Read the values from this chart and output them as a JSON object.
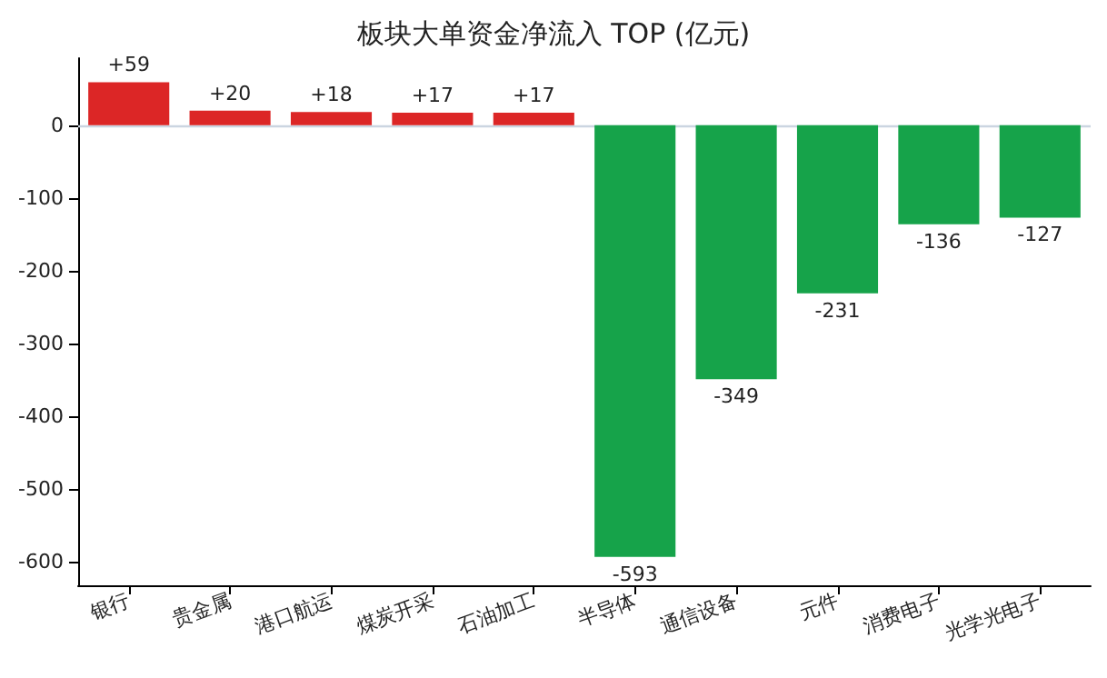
{
  "chart_data": {
    "type": "bar",
    "title": "板块大单资金净流入 TOP (亿元)",
    "categories": [
      "银行",
      "贵金属",
      "港口航运",
      "煤炭开采",
      "石油加工",
      "半导体",
      "通信设备",
      "元件",
      "消费电子",
      "光学光电子"
    ],
    "values": [
      59,
      20,
      18,
      17,
      17,
      -593,
      -349,
      -231,
      -136,
      -127
    ],
    "value_labels": [
      "+59",
      "+20",
      "+18",
      "+17",
      "+17",
      "-593",
      "-349",
      "-231",
      "-136",
      "-127"
    ],
    "colors": [
      "#dc2626",
      "#dc2626",
      "#dc2626",
      "#dc2626",
      "#dc2626",
      "#16a34a",
      "#16a34a",
      "#16a34a",
      "#16a34a",
      "#16a34a"
    ],
    "ylim": [
      -632,
      92
    ],
    "yticks": [
      0,
      -100,
      -200,
      -300,
      -400,
      -500,
      -600
    ],
    "ref_lines": [
      {
        "axis": "y",
        "value": 0,
        "color": "#cbd5e1"
      }
    ],
    "grid": false
  }
}
